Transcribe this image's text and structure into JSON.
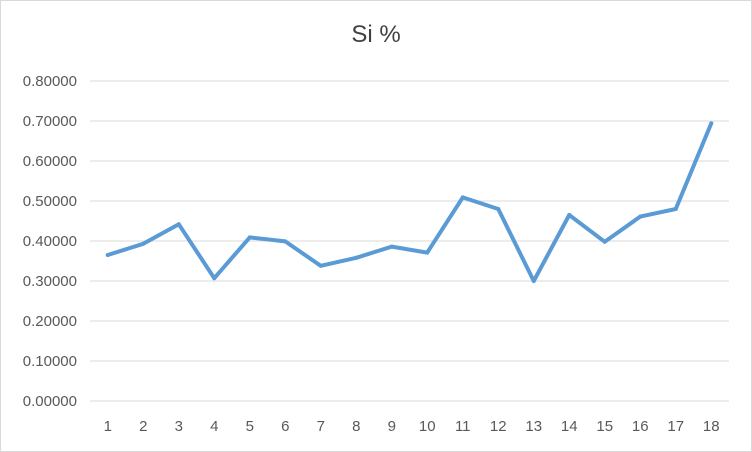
{
  "chart_data": {
    "type": "line",
    "title": "Si %",
    "xlabel": "",
    "ylabel": "",
    "categories": [
      "1",
      "2",
      "3",
      "4",
      "5",
      "6",
      "7",
      "8",
      "9",
      "10",
      "11",
      "12",
      "13",
      "14",
      "15",
      "16",
      "17",
      "18"
    ],
    "series": [
      {
        "values": [
          0.365,
          0.393,
          0.442,
          0.307,
          0.409,
          0.399,
          0.338,
          0.358,
          0.386,
          0.371,
          0.509,
          0.48,
          0.3,
          0.465,
          0.398,
          0.461,
          0.48,
          0.694
        ],
        "color": "#5b9bd5"
      }
    ],
    "ylim": [
      0,
      0.8
    ],
    "yticks": [
      "0.00000",
      "0.10000",
      "0.20000",
      "0.30000",
      "0.40000",
      "0.50000",
      "0.60000",
      "0.70000",
      "0.80000"
    ],
    "grid": true,
    "legend": "none"
  }
}
